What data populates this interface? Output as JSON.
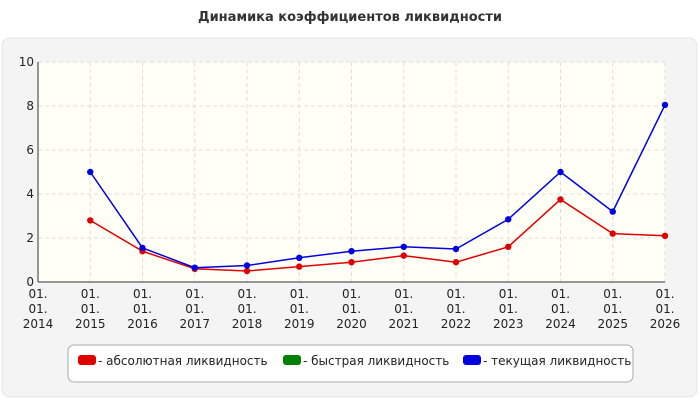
{
  "chart_data": {
    "type": "line",
    "title": "Динамика коэффициентов ликвидности",
    "categories": [
      "01. 01. 2014",
      "01. 01. 2015",
      "01. 01. 2016",
      "01. 01. 2017",
      "01. 01. 2018",
      "01. 01. 2019",
      "01. 01. 2020",
      "01. 01. 2021",
      "01. 01. 2022",
      "01. 01. 2023",
      "01. 01. 2024",
      "01. 01. 2025",
      "01. 01. 2026"
    ],
    "series": [
      {
        "name": "- абсолютная ликвидность",
        "color": "#e00000",
        "values": [
          null,
          2.8,
          1.4,
          0.6,
          0.5,
          0.7,
          0.9,
          1.2,
          0.9,
          1.6,
          3.75,
          2.2,
          2.1
        ]
      },
      {
        "name": "- быстрая ликвидность",
        "color": "#008000",
        "values": [
          null,
          null,
          null,
          null,
          null,
          null,
          null,
          null,
          null,
          null,
          null,
          null,
          null
        ]
      },
      {
        "name": "- текущая ликвидность",
        "color": "#0000e0",
        "values": [
          null,
          5.0,
          1.55,
          0.65,
          0.75,
          1.1,
          1.4,
          1.6,
          1.5,
          2.85,
          5.0,
          3.2,
          8.05
        ]
      }
    ],
    "ylim": [
      0,
      10
    ],
    "yticks": [
      0,
      2,
      4,
      6,
      8,
      10
    ],
    "grid": true
  }
}
